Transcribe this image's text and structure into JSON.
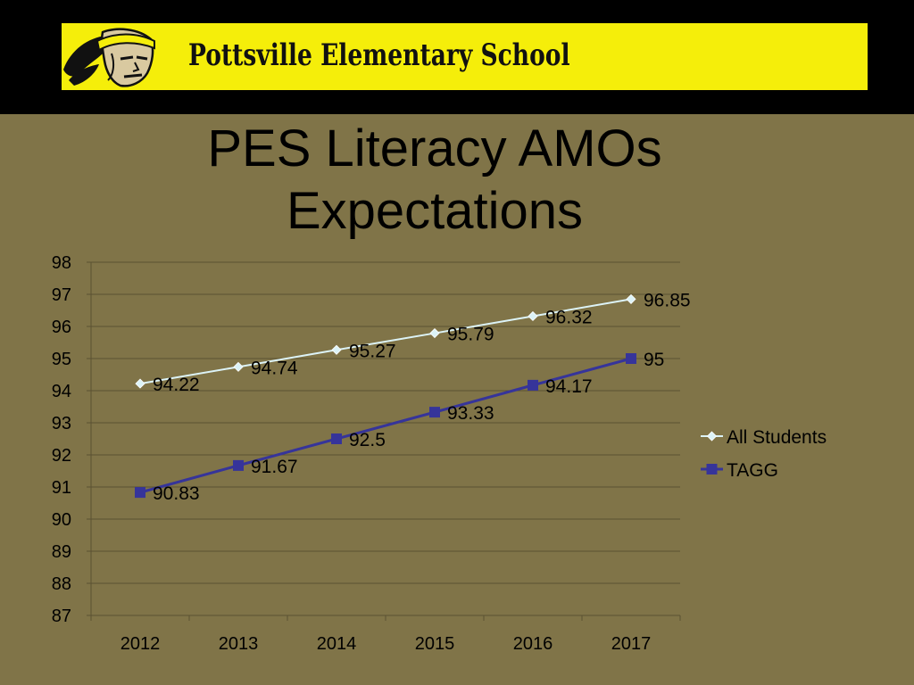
{
  "header": {
    "school_name": "Pottsville Elementary School",
    "logo_icon": "warrior-mascot-logo",
    "band_color": "#000000",
    "banner_color": "#f5ee0a"
  },
  "title": {
    "line1": "PES Literacy AMOs",
    "line2": "Expectations"
  },
  "chart_data": {
    "type": "line",
    "categories": [
      "2012",
      "2013",
      "2014",
      "2015",
      "2016",
      "2017"
    ],
    "series": [
      {
        "name": "All Students",
        "values": [
          94.22,
          94.74,
          95.27,
          95.79,
          96.32,
          96.85
        ],
        "color": "#dcf3f7",
        "marker": "diamond",
        "labels": [
          "94.22",
          "94.74",
          "95.27",
          "95.79",
          "96.32",
          "96.85"
        ]
      },
      {
        "name": "TAGG",
        "values": [
          90.83,
          91.67,
          92.5,
          93.33,
          94.17,
          95
        ],
        "color": "#36349a",
        "marker": "square",
        "labels": [
          "90.83",
          "91.67",
          "92.5",
          "93.33",
          "94.17",
          "95"
        ]
      }
    ],
    "ylim": [
      87,
      98
    ],
    "yticks": [
      "87",
      "88",
      "89",
      "90",
      "91",
      "92",
      "93",
      "94",
      "95",
      "96",
      "97",
      "98"
    ],
    "grid": true,
    "legend": "right"
  }
}
